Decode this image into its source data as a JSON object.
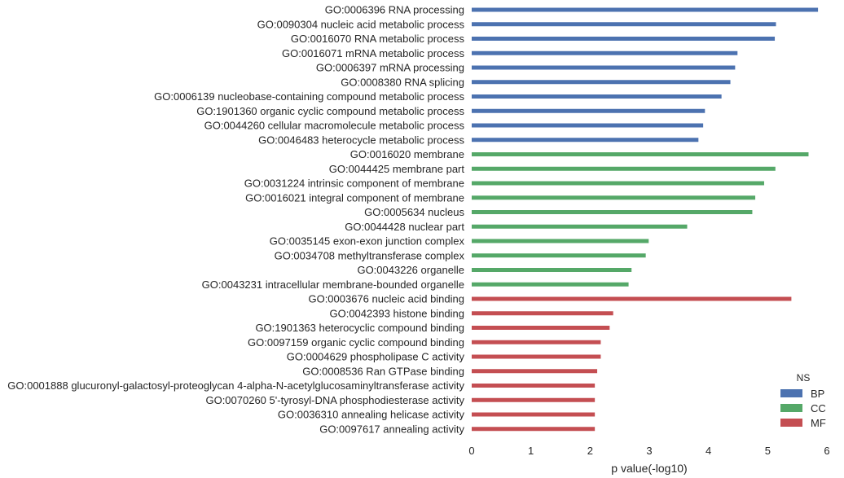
{
  "chart_data": {
    "type": "bar",
    "orientation": "horizontal",
    "xlabel": "p value(-log10)",
    "xlim": [
      0,
      6
    ],
    "xticks": [
      "0",
      "1",
      "2",
      "3",
      "4",
      "5",
      "6"
    ],
    "grid": false,
    "legend": {
      "title": "NS",
      "placement": "bottom-right",
      "entries": [
        {
          "name": "BP",
          "color": "#4c72b0"
        },
        {
          "name": "CC",
          "color": "#55a868"
        },
        {
          "name": "MF",
          "color": "#c44e52"
        }
      ]
    },
    "bars": [
      {
        "label": "GO:0006396 RNA processing",
        "value": 5.85,
        "ns": "BP"
      },
      {
        "label": "GO:0090304 nucleic acid metabolic process",
        "value": 5.14,
        "ns": "BP"
      },
      {
        "label": "GO:0016070 RNA metabolic process",
        "value": 5.12,
        "ns": "BP"
      },
      {
        "label": "GO:0016071 mRNA metabolic process",
        "value": 4.49,
        "ns": "BP"
      },
      {
        "label": "GO:0006397 mRNA processing",
        "value": 4.45,
        "ns": "BP"
      },
      {
        "label": "GO:0008380 RNA splicing",
        "value": 4.37,
        "ns": "BP"
      },
      {
        "label": "GO:0006139 nucleobase-containing compound metabolic process",
        "value": 4.22,
        "ns": "BP"
      },
      {
        "label": "GO:1901360 organic cyclic compound metabolic process",
        "value": 3.94,
        "ns": "BP"
      },
      {
        "label": "GO:0044260 cellular macromolecule metabolic process",
        "value": 3.91,
        "ns": "BP"
      },
      {
        "label": "GO:0046483 heterocycle metabolic process",
        "value": 3.83,
        "ns": "BP"
      },
      {
        "label": "GO:0016020 membrane",
        "value": 5.69,
        "ns": "CC"
      },
      {
        "label": "GO:0044425 membrane part",
        "value": 5.13,
        "ns": "CC"
      },
      {
        "label": "GO:0031224 intrinsic component of membrane",
        "value": 4.94,
        "ns": "CC"
      },
      {
        "label": "GO:0016021 integral component of membrane",
        "value": 4.79,
        "ns": "CC"
      },
      {
        "label": "GO:0005634 nucleus",
        "value": 4.74,
        "ns": "CC"
      },
      {
        "label": "GO:0044428 nuclear part",
        "value": 3.64,
        "ns": "CC"
      },
      {
        "label": "GO:0035145 exon-exon junction complex",
        "value": 2.99,
        "ns": "CC"
      },
      {
        "label": "GO:0034708 methyltransferase complex",
        "value": 2.94,
        "ns": "CC"
      },
      {
        "label": "GO:0043226 organelle",
        "value": 2.7,
        "ns": "CC"
      },
      {
        "label": "GO:0043231 intracellular membrane-bounded organelle",
        "value": 2.65,
        "ns": "CC"
      },
      {
        "label": "GO:0003676 nucleic acid binding",
        "value": 5.4,
        "ns": "MF"
      },
      {
        "label": "GO:0042393 histone binding",
        "value": 2.39,
        "ns": "MF"
      },
      {
        "label": "GO:1901363 heterocyclic compound binding",
        "value": 2.33,
        "ns": "MF"
      },
      {
        "label": "GO:0097159 organic cyclic compound binding",
        "value": 2.18,
        "ns": "MF"
      },
      {
        "label": "GO:0004629 phospholipase C activity",
        "value": 2.18,
        "ns": "MF"
      },
      {
        "label": "GO:0008536 Ran GTPase binding",
        "value": 2.12,
        "ns": "MF"
      },
      {
        "label": "GO:0001888 glucuronyl-galactosyl-proteoglycan 4-alpha-N-acetylglucosaminyltransferase activity",
        "value": 2.08,
        "ns": "MF"
      },
      {
        "label": "GO:0070260 5'-tyrosyl-DNA phosphodiesterase activity",
        "value": 2.08,
        "ns": "MF"
      },
      {
        "label": "GO:0036310 annealing helicase activity",
        "value": 2.08,
        "ns": "MF"
      },
      {
        "label": "GO:0097617 annealing activity",
        "value": 2.08,
        "ns": "MF"
      }
    ]
  }
}
